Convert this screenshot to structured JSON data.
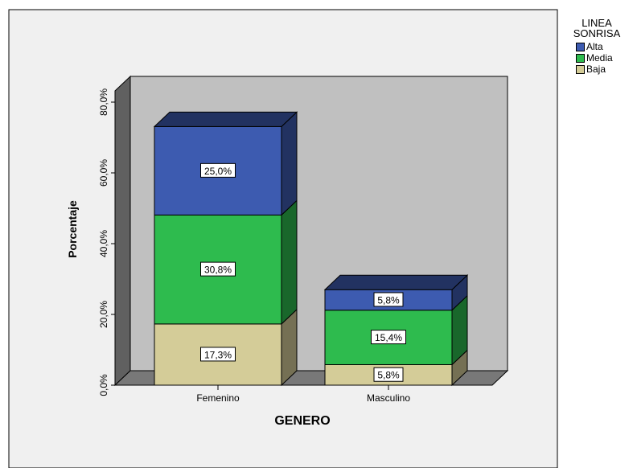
{
  "chart_data": {
    "type": "bar",
    "stacked": true,
    "three_d": true,
    "categories": [
      "Femenino",
      "Masculino"
    ],
    "series": [
      {
        "name": "Baja",
        "values": [
          17.3,
          5.8
        ],
        "labels": [
          "17,3%",
          "5,8%"
        ],
        "color": "#d4cc98"
      },
      {
        "name": "Media",
        "values": [
          30.8,
          15.4
        ],
        "labels": [
          "30,8%",
          "15,4%"
        ],
        "color": "#2ebb4e"
      },
      {
        "name": "Alta",
        "values": [
          25.0,
          5.8
        ],
        "labels": [
          "25,0%",
          "5,8%"
        ],
        "color": "#3d5bb0"
      }
    ],
    "title": "",
    "xlabel": "GENERO",
    "ylabel": "Porcentaje",
    "ylim": [
      0,
      80
    ],
    "yticks": [
      {
        "value": 0,
        "label": "0,0%"
      },
      {
        "value": 20,
        "label": "20,0%"
      },
      {
        "value": 40,
        "label": "40,0%"
      },
      {
        "value": 60,
        "label": "60,0%"
      },
      {
        "value": 80,
        "label": "80,0%"
      }
    ],
    "grid": false,
    "legend": {
      "title_lines": [
        "LINEA",
        "SONRISA"
      ],
      "placement": "top-right",
      "entries": [
        "Alta",
        "Media",
        "Baja"
      ]
    },
    "colors": {
      "back_wall": "#c0c0c0",
      "side_wall": "#606060",
      "floor": "#787878"
    }
  }
}
